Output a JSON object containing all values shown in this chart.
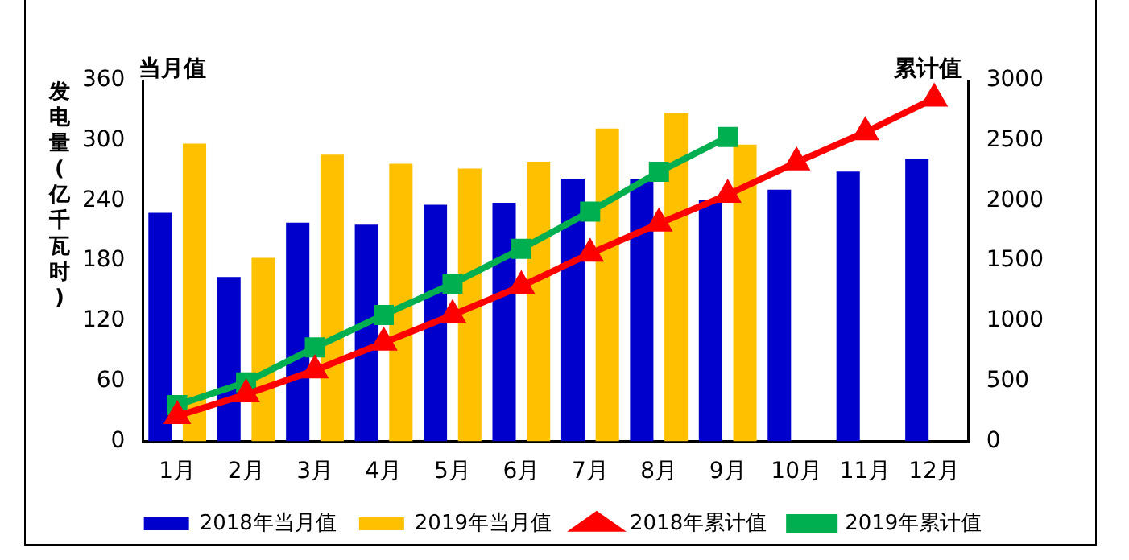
{
  "chart_data": {
    "type": "bar",
    "ylabel": "发电量(亿千瓦时)",
    "y2label": "累计值",
    "annotations": [
      "当月值"
    ],
    "categories": [
      "1月",
      "2月",
      "3月",
      "4月",
      "5月",
      "6月",
      "7月",
      "8月",
      "9月",
      "10月",
      "11月",
      "12月"
    ],
    "series": [
      {
        "name": "2018年当月值",
        "color": "#0000cc",
        "values": [
          228,
          164,
          218,
          216,
          236,
          238,
          262,
          262,
          241,
          251,
          269,
          282
        ]
      },
      {
        "name": "2019年当月值",
        "color": "#ffc000",
        "values": [
          297,
          183,
          286,
          277,
          272,
          279,
          312,
          327,
          296,
          null,
          null,
          null
        ]
      },
      {
        "name": "2018年累计值",
        "type": "line",
        "axis": "y2",
        "marker": "triangle",
        "color": "#ff0000",
        "values": [
          210,
          390,
          590,
          820,
          1050,
          1290,
          1560,
          1810,
          2050,
          2320,
          2570,
          2850
        ]
      },
      {
        "name": "2019年累计值",
        "type": "line",
        "axis": "y2",
        "marker": "square",
        "color": "#00b050",
        "values": [
          300,
          490,
          780,
          1050,
          1310,
          1600,
          1910,
          2240,
          2530,
          null,
          null,
          null
        ]
      }
    ],
    "ylim": [
      0,
      360
    ],
    "yticks": [
      0,
      60,
      120,
      180,
      240,
      300,
      360
    ],
    "y2lim": [
      0,
      3000
    ],
    "y2ticks": [
      0,
      500,
      1000,
      1500,
      2000,
      2500,
      3000
    ],
    "grid": false,
    "legend": "bottom"
  }
}
